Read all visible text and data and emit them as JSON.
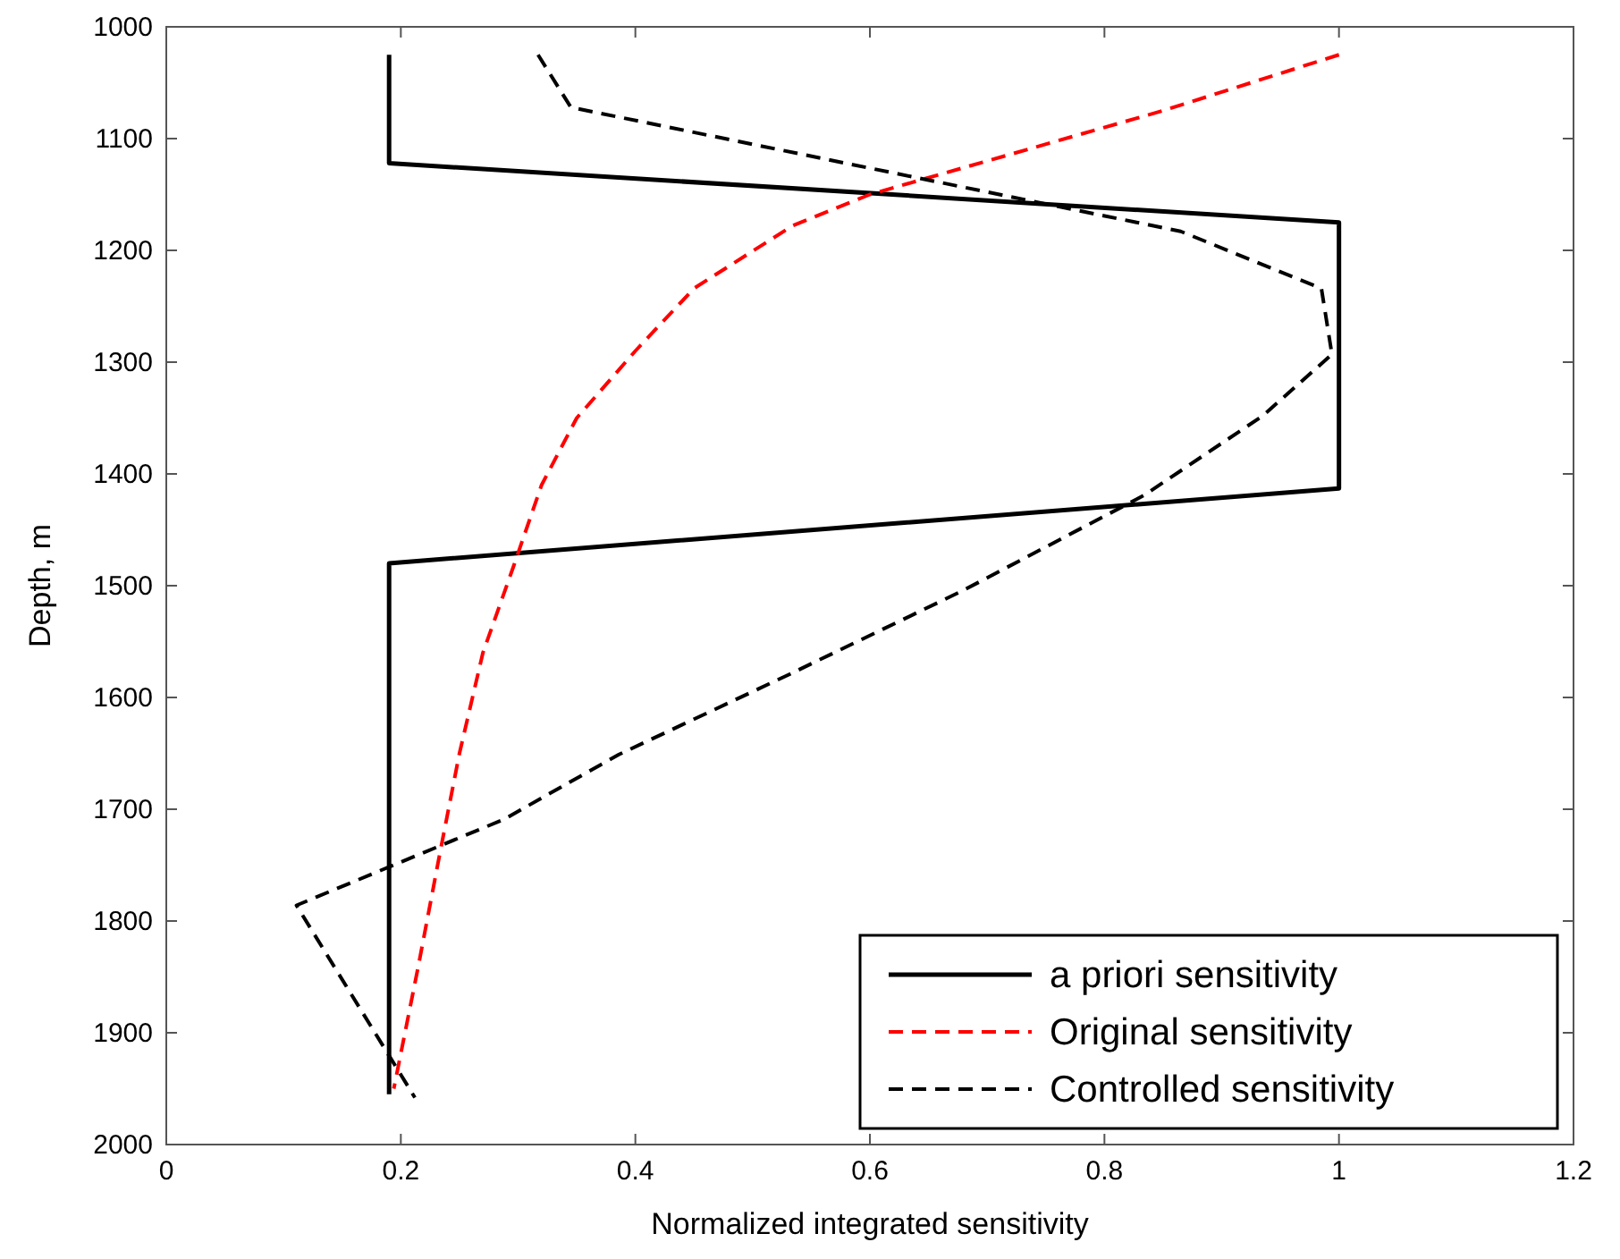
{
  "chart_data": {
    "type": "line",
    "xlabel": "Normalized integrated sensitivity",
    "ylabel": "Depth, m",
    "xlim": [
      0,
      1.2
    ],
    "ylim": [
      2000,
      1000
    ],
    "xticks": [
      0,
      0.2,
      0.4,
      0.6,
      0.8,
      1,
      1.2
    ],
    "yticks": [
      1000,
      1100,
      1200,
      1300,
      1400,
      1500,
      1600,
      1700,
      1800,
      1900,
      2000
    ],
    "legend": "bottom right",
    "grid": false,
    "marker": "none",
    "series": [
      {
        "name": "a priori sensitivity",
        "color": "#000000",
        "line_style": "solid",
        "x": [
          0.19,
          0.19,
          1,
          1,
          0.19,
          0.19
        ],
        "values": [
          1025,
          1122,
          1175,
          1413,
          1480,
          1955
        ]
      },
      {
        "name": "Original sensitivity",
        "color": "#ff0000",
        "line_style": "dashed",
        "x": [
          1.0,
          0.85,
          0.7,
          0.6,
          0.534,
          0.45,
          0.4,
          0.35,
          0.32,
          0.296,
          0.27,
          0.25,
          0.233,
          0.215,
          0.194
        ],
        "values": [
          1025,
          1075,
          1120,
          1150,
          1178,
          1234,
          1290,
          1350,
          1410,
          1483,
          1560,
          1650,
          1741,
          1840,
          1950
        ]
      },
      {
        "name": "Controlled sensitivity",
        "color": "#000000",
        "line_style": "dashed",
        "x": [
          0.317,
          0.345,
          0.865,
          0.985,
          0.994,
          0.935,
          0.834,
          0.68,
          0.53,
          0.386,
          0.288,
          0.111,
          0.212
        ],
        "values": [
          1025,
          1072,
          1183,
          1234,
          1293,
          1348,
          1419,
          1504,
          1580,
          1651,
          1709,
          1786,
          1958
        ]
      }
    ]
  }
}
